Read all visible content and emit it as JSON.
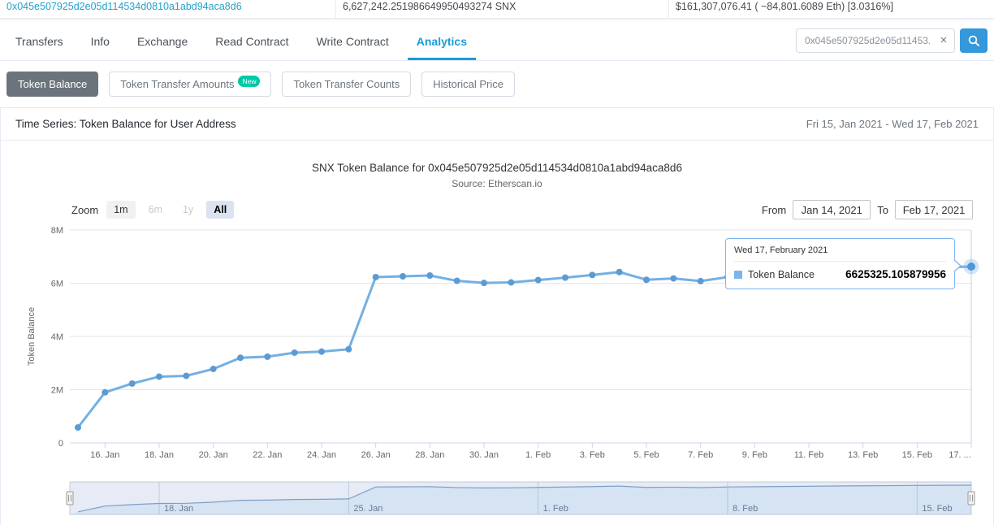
{
  "header": {
    "address": "0x045e507925d2e05d114534d0810a1abd94aca8d6",
    "balance": "6,627,242.251986649950493274 SNX",
    "value": "$161,307,076.41 ( ~84,801.6089 Eth) [3.0316%]"
  },
  "tabs": [
    {
      "label": "Transfers",
      "active": false
    },
    {
      "label": "Info",
      "active": false
    },
    {
      "label": "Exchange",
      "active": false
    },
    {
      "label": "Read Contract",
      "active": false
    },
    {
      "label": "Write Contract",
      "active": false
    },
    {
      "label": "Analytics",
      "active": true
    }
  ],
  "search": {
    "value": "0x045e507925d2e05d11453...",
    "clear_icon": "×"
  },
  "subtabs": [
    {
      "label": "Token Balance",
      "active": true
    },
    {
      "label": "Token Transfer Amounts",
      "active": false,
      "badge": "New"
    },
    {
      "label": "Token Transfer Counts",
      "active": false
    },
    {
      "label": "Historical Price",
      "active": false
    }
  ],
  "panel": {
    "title": "Time Series: Token Balance for User Address",
    "date_range": "Fri 15, Jan 2021 - Wed 17, Feb 2021"
  },
  "chart": {
    "title": "SNX Token Balance for 0x045e507925d2e05d114534d0810a1abd94aca8d6",
    "subtitle": "Source: Etherscan.io",
    "zoom_label": "Zoom",
    "zoom_buttons": [
      {
        "label": "1m",
        "state": "normal"
      },
      {
        "label": "6m",
        "state": "disabled"
      },
      {
        "label": "1y",
        "state": "disabled"
      },
      {
        "label": "All",
        "state": "selected"
      }
    ],
    "from_label": "From",
    "from_value": "Jan 14, 2021",
    "to_label": "To",
    "to_value": "Feb 17, 2021",
    "tooltip": {
      "date": "Wed 17, February 2021",
      "series": "Token Balance",
      "value": "6625325.105879956"
    }
  },
  "chart_data": {
    "type": "line",
    "title": "SNX Token Balance for 0x045e507925d2e05d114534d0810a1abd94aca8d6",
    "subtitle": "Source: Etherscan.io",
    "series_name": "Token Balance",
    "ylabel": "Token Balance",
    "ylim": [
      0,
      8000000
    ],
    "x": [
      "15. Jan",
      "16. Jan",
      "17. Jan",
      "18. Jan",
      "19. Jan",
      "20. Jan",
      "21. Jan",
      "22. Jan",
      "23. Jan",
      "24. Jan",
      "25. Jan",
      "26. Jan",
      "27. Jan",
      "28. Jan",
      "29. Jan",
      "30. Jan",
      "31. Jan",
      "1. Feb",
      "2. Feb",
      "3. Feb",
      "4. Feb",
      "5. Feb",
      "6. Feb",
      "7. Feb",
      "8. Feb",
      "9. Feb",
      "10. Feb",
      "11. Feb",
      "12. Feb",
      "13. Feb",
      "14. Feb",
      "15. Feb",
      "16. Feb",
      "17. Feb"
    ],
    "values": [
      580000,
      1900000,
      2230000,
      2490000,
      2520000,
      2780000,
      3200000,
      3240000,
      3390000,
      3430000,
      3520000,
      6230000,
      6260000,
      6290000,
      6090000,
      6010000,
      6030000,
      6120000,
      6210000,
      6310000,
      6420000,
      6130000,
      6180000,
      6080000,
      6230000,
      6280000,
      6330000,
      6380000,
      6440000,
      6490000,
      6530000,
      6570000,
      6600000,
      6625325.105879956
    ],
    "yticks": [
      {
        "v": 0,
        "label": "0"
      },
      {
        "v": 2000000,
        "label": "2M"
      },
      {
        "v": 4000000,
        "label": "4M"
      },
      {
        "v": 6000000,
        "label": "6M"
      },
      {
        "v": 8000000,
        "label": "8M"
      }
    ],
    "xticks": [
      {
        "i": 1,
        "label": "16. Jan"
      },
      {
        "i": 3,
        "label": "18. Jan"
      },
      {
        "i": 5,
        "label": "20. Jan"
      },
      {
        "i": 7,
        "label": "22. Jan"
      },
      {
        "i": 9,
        "label": "24. Jan"
      },
      {
        "i": 11,
        "label": "26. Jan"
      },
      {
        "i": 13,
        "label": "28. Jan"
      },
      {
        "i": 15,
        "label": "30. Jan"
      },
      {
        "i": 17,
        "label": "1. Feb"
      },
      {
        "i": 19,
        "label": "3. Feb"
      },
      {
        "i": 21,
        "label": "5. Feb"
      },
      {
        "i": 23,
        "label": "7. Feb"
      },
      {
        "i": 25,
        "label": "9. Feb"
      },
      {
        "i": 27,
        "label": "11. Feb"
      },
      {
        "i": 29,
        "label": "13. Feb"
      },
      {
        "i": 31,
        "label": "15. Feb"
      },
      {
        "i": 33,
        "label": "17. ..."
      }
    ],
    "navigator_ticks": [
      {
        "i": 3,
        "label": "18. Jan"
      },
      {
        "i": 10,
        "label": "25. Jan"
      },
      {
        "i": 17,
        "label": "1. Feb"
      },
      {
        "i": 24,
        "label": "8. Feb"
      },
      {
        "i": 31,
        "label": "15. Feb"
      }
    ],
    "highlight_index": 33,
    "legend_position": "tooltip",
    "grid": true
  },
  "colors": {
    "accent_blue": "#1d9bd8",
    "address_teal": "#23a2c9",
    "search_button": "#3498db",
    "pill_active": "#6b747c",
    "badge_new": "#00c9a7",
    "series_line": "#74b0e2",
    "series_marker": "#5b9bd3",
    "gridline": "#e6e6e6",
    "axis_line": "#ccd6eb",
    "axis_text": "#666666",
    "crosshair": "#cccccc",
    "navigator_mask": "rgba(102,133,194,0.16)",
    "navigator_outline": "#c0cbd8",
    "navigator_line": "#7f9fc6"
  }
}
